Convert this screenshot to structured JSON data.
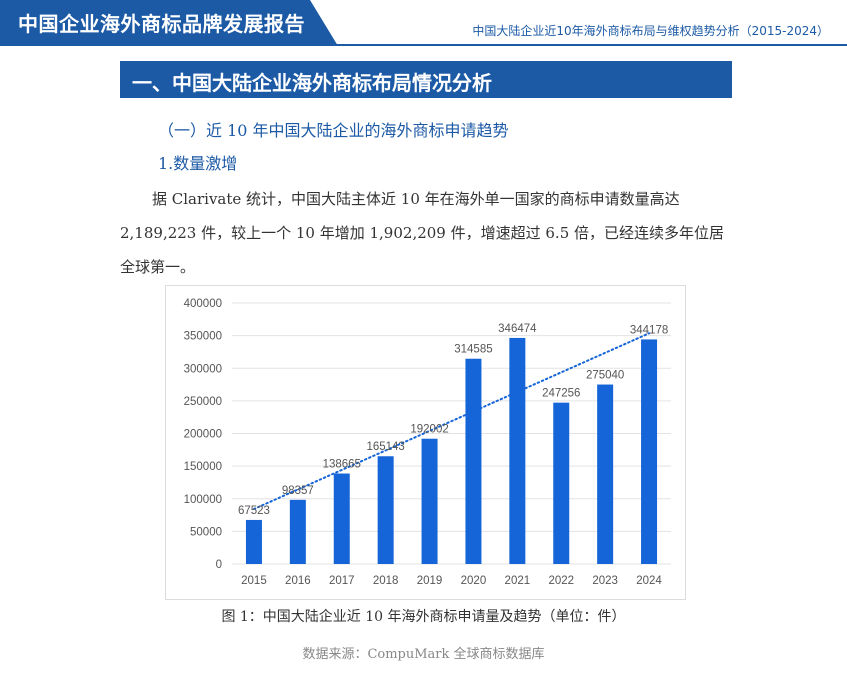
{
  "header": {
    "title": "中国企业海外商标品牌发展报告",
    "subtitle": "中国大陆企业近10年海外商标布局与维权趋势分析（2015-2024）"
  },
  "section": {
    "title": "一、中国大陆企业海外商标布局情况分析",
    "sub1": "（一）近 10 年中国大陆企业的海外商标申请趋势",
    "sub2": "1.数量激增",
    "paragraph": "据 Clarivate 统计，中国大陆主体近 10 年在海外单一国家的商标申请数量高达 2,189,223 件，较上一个 10 年增加 1,902,209 件，增速超过 6.5 倍，已经连续多年位居全球第一。"
  },
  "figure": {
    "caption": "图 1：中国大陆企业近 10 年海外商标申请量及趋势（单位：件）",
    "source": "数据来源：CompuMark 全球商标数据库"
  },
  "chart_data": {
    "type": "bar",
    "categories": [
      "2015",
      "2016",
      "2017",
      "2018",
      "2019",
      "2020",
      "2021",
      "2022",
      "2023",
      "2024"
    ],
    "values": [
      67523,
      98357,
      138665,
      165143,
      192002,
      314585,
      346474,
      247256,
      275040,
      344178
    ],
    "data_labels": [
      "67523",
      "98357",
      "138665",
      "165143",
      "192002",
      "314585",
      "346474",
      "247256",
      "275040",
      "344178"
    ],
    "yticks": [
      "0",
      "50000",
      "100000",
      "150000",
      "200000",
      "250000",
      "300000",
      "350000",
      "400000"
    ],
    "ylim": [
      0,
      400000
    ],
    "trendline": true,
    "trendline_style": "dotted",
    "grid": true,
    "colors": {
      "bar": "#1565d8",
      "trend": "#1565d8",
      "grid": "#e3e3e3",
      "label": "#555555"
    }
  }
}
